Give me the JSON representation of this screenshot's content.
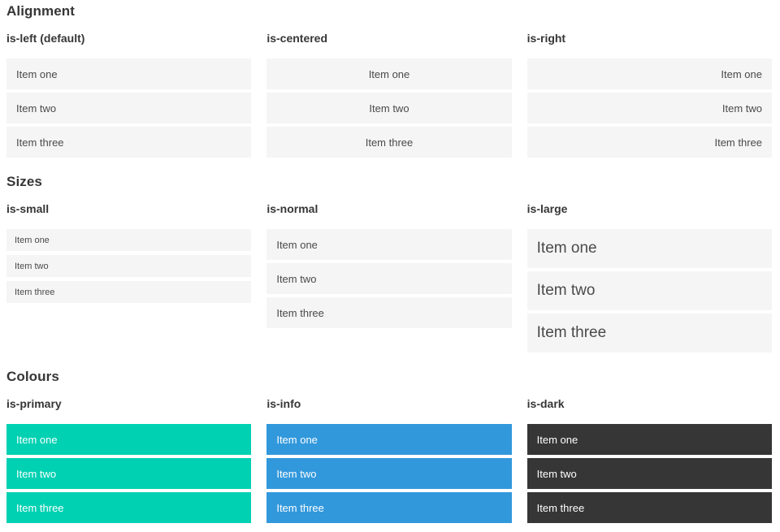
{
  "sections": [
    {
      "title": "Alignment",
      "columns": [
        {
          "heading": "is-left (default)",
          "items": [
            "Item one",
            "Item two",
            "Item three"
          ]
        },
        {
          "heading": "is-centered",
          "items": [
            "Item one",
            "Item two",
            "Item three"
          ]
        },
        {
          "heading": "is-right",
          "items": [
            "Item one",
            "Item two",
            "Item three"
          ]
        }
      ]
    },
    {
      "title": "Sizes",
      "columns": [
        {
          "heading": "is-small",
          "items": [
            "Item one",
            "Item two",
            "Item three"
          ]
        },
        {
          "heading": "is-normal",
          "items": [
            "Item one",
            "Item two",
            "Item three"
          ]
        },
        {
          "heading": "is-large",
          "items": [
            "Item one",
            "Item two",
            "Item three"
          ]
        }
      ]
    },
    {
      "title": "Colours",
      "columns": [
        {
          "heading": "is-primary",
          "items": [
            "Item one",
            "Item two",
            "Item three"
          ]
        },
        {
          "heading": "is-info",
          "items": [
            "Item one",
            "Item two",
            "Item three"
          ]
        },
        {
          "heading": "is-dark",
          "items": [
            "Item one",
            "Item two",
            "Item three"
          ]
        }
      ]
    }
  ],
  "colors": {
    "primary": "#00d1b2",
    "info": "#3298dc",
    "dark": "#363636",
    "item_bg": "#f5f5f5",
    "item_text": "#4a4a4a",
    "item_text_on_color": "#ffffff",
    "heading_text": "#363636"
  }
}
